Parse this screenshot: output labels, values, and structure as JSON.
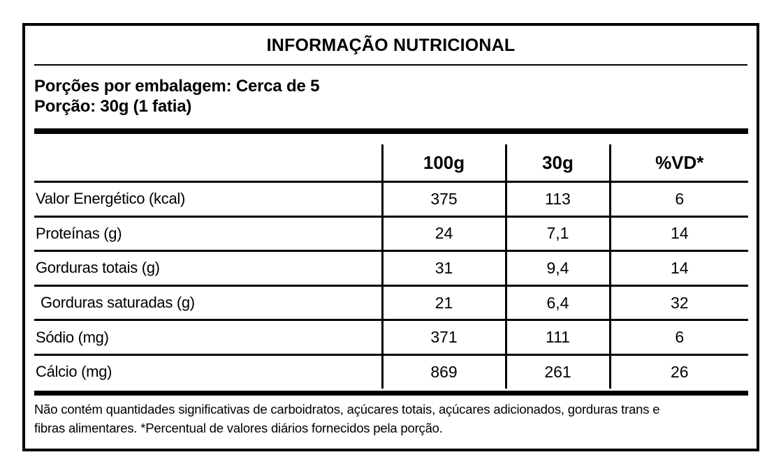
{
  "colors": {
    "ink": "#000000",
    "background": "#ffffff"
  },
  "label": {
    "title": "INFORMAÇÃO NUTRICIONAL",
    "servings_line": "Porções por embalagem: Cerca de 5",
    "portion_line": "Porção: 30g (1 fatia)",
    "columns": {
      "per100g": "100g",
      "per30g": "30g",
      "dv": "%VD*"
    },
    "rows": [
      {
        "name": "Valor Energético (kcal)",
        "v100": "375",
        "v30": "113",
        "vd": "6"
      },
      {
        "name": "Proteínas (g)",
        "v100": "24",
        "v30": "7,1",
        "vd": "14"
      },
      {
        "name": "Gorduras totais (g)",
        "v100": "31",
        "v30": "9,4",
        "vd": "14"
      },
      {
        "name": "Gorduras saturadas (g)",
        "v100": "21",
        "v30": "6,4",
        "vd": "32"
      },
      {
        "name": "Sódio (mg)",
        "v100": "371",
        "v30": "111",
        "vd": "6"
      },
      {
        "name": "Cálcio (mg)",
        "v100": "869",
        "v30": "261",
        "vd": "26"
      }
    ],
    "footnote_lines": [
      "Não contém quantidades significativas de carboidratos, açúcares totais, açúcares adicionados, gorduras trans e",
      "fibras alimentares. *Percentual de valores diários fornecidos pela porção."
    ]
  }
}
